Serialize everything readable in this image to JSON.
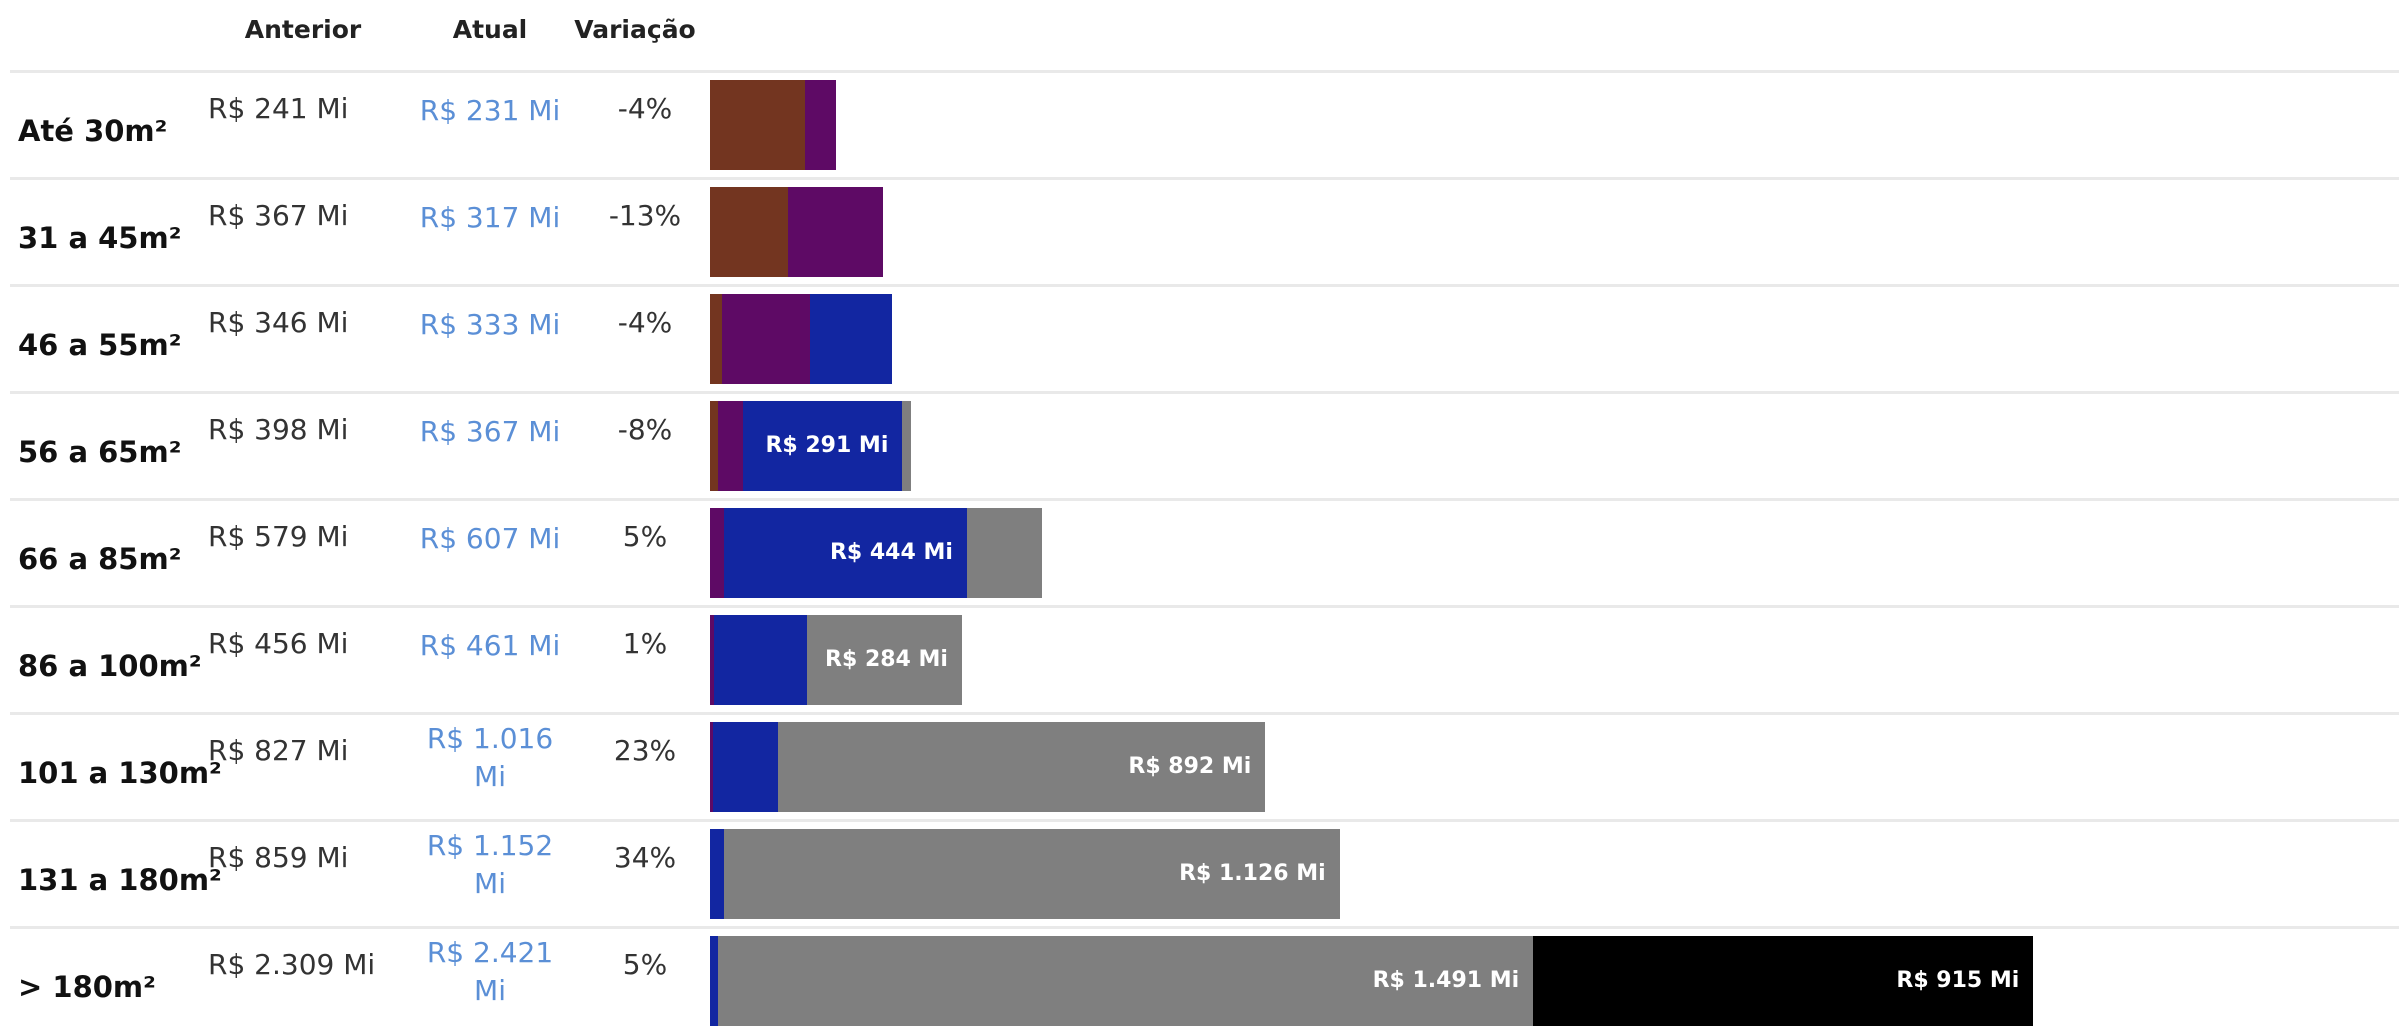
{
  "header": {
    "anterior": "Anterior",
    "atual": "Atual",
    "variacao": "Variação"
  },
  "colors": {
    "brown": "#733520",
    "purple": "#5e0a65",
    "blue": "#1226a1",
    "gray": "#7f7f7f",
    "black": "#000000"
  },
  "chart_data": {
    "type": "bar",
    "orientation": "horizontal",
    "stacked": true,
    "xlim": [
      0,
      3090
    ],
    "categories": [
      "Até 30m²",
      "31 a 45m²",
      "46 a 55m²",
      "56 a 65m²",
      "66 a 85m²",
      "86 a 100m²",
      "101 a 130m²",
      "131 a 180m²",
      "> 180m²"
    ],
    "rows": [
      {
        "size": "Até 30m²",
        "anterior": "R$ 241 Mi",
        "atual": "R$ 231 Mi",
        "variacao": "-4%",
        "segments": [
          {
            "color": "brown",
            "value": 173
          },
          {
            "color": "purple",
            "value": 58
          }
        ]
      },
      {
        "size": "31 a 45m²",
        "anterior": "R$ 367 Mi",
        "atual": "R$ 317 Mi",
        "variacao": "-13%",
        "segments": [
          {
            "color": "brown",
            "value": 143
          },
          {
            "color": "purple",
            "value": 174
          }
        ]
      },
      {
        "size": "46 a 55m²",
        "anterior": "R$ 346 Mi",
        "atual": "R$ 333 Mi",
        "variacao": "-4%",
        "segments": [
          {
            "color": "brown",
            "value": 22
          },
          {
            "color": "purple",
            "value": 161
          },
          {
            "color": "blue",
            "value": 150
          }
        ]
      },
      {
        "size": "56 a 65m²",
        "anterior": "R$ 398 Mi",
        "atual": "R$ 367 Mi",
        "variacao": "-8%",
        "segments": [
          {
            "color": "brown",
            "value": 14
          },
          {
            "color": "purple",
            "value": 47
          },
          {
            "color": "blue",
            "value": 291,
            "label": "R$ 291 Mi"
          },
          {
            "color": "gray",
            "value": 15
          }
        ]
      },
      {
        "size": "66 a 85m²",
        "anterior": "R$ 579 Mi",
        "atual": "R$ 607 Mi",
        "variacao": "5%",
        "segments": [
          {
            "color": "purple",
            "value": 26
          },
          {
            "color": "blue",
            "value": 444,
            "label": "R$ 444 Mi"
          },
          {
            "color": "gray",
            "value": 137
          }
        ]
      },
      {
        "size": "86 a 100m²",
        "anterior": "R$ 456 Mi",
        "atual": "R$ 461 Mi",
        "variacao": "1%",
        "segments": [
          {
            "color": "purple",
            "value": 8
          },
          {
            "color": "blue",
            "value": 169
          },
          {
            "color": "gray",
            "value": 284,
            "label": "R$ 284 Mi"
          }
        ]
      },
      {
        "size": "101 a 130m²",
        "anterior": "R$ 827 Mi",
        "atual": "R$ 1.016 Mi",
        "variacao": "23%",
        "segments": [
          {
            "color": "purple",
            "value": 5
          },
          {
            "color": "blue",
            "value": 119
          },
          {
            "color": "gray",
            "value": 892,
            "label": "R$ 892 Mi"
          }
        ]
      },
      {
        "size": "131 a 180m²",
        "anterior": "R$ 859 Mi",
        "atual": "R$ 1.152 Mi",
        "variacao": "34%",
        "segments": [
          {
            "color": "blue",
            "value": 26
          },
          {
            "color": "gray",
            "value": 1126,
            "label": "R$ 1.126 Mi"
          }
        ]
      },
      {
        "size": "> 180m²",
        "anterior": "R$ 2.309 Mi",
        "atual": "R$ 2.421 Mi",
        "variacao": "5%",
        "segments": [
          {
            "color": "blue",
            "value": 15
          },
          {
            "color": "gray",
            "value": 1491,
            "label": "R$ 1.491 Mi"
          },
          {
            "color": "black",
            "value": 915,
            "label": "R$ 915 Mi"
          }
        ]
      }
    ]
  }
}
